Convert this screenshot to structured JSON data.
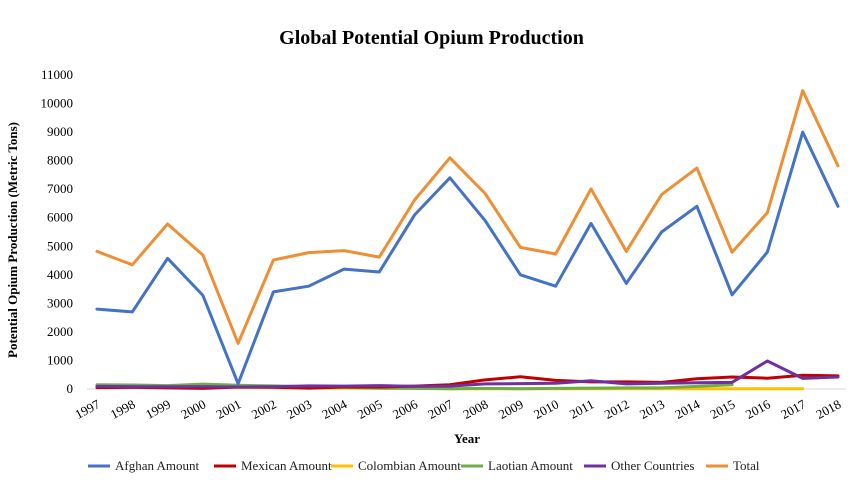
{
  "chart_data": {
    "type": "line",
    "title": "Global Potential Opium Production",
    "xlabel": "Year",
    "ylabel": "Potential Opium Production (Metric Tons)",
    "x": [
      "1997",
      "1998",
      "1999",
      "2000",
      "2001",
      "2002",
      "2003",
      "2004",
      "2005",
      "2006",
      "2007",
      "2008",
      "2009",
      "2010",
      "2011",
      "2012",
      "2013",
      "2014",
      "2015",
      "2016",
      "2017",
      "2018"
    ],
    "ylim": [
      0,
      11000
    ],
    "yticks": [
      0,
      1000,
      2000,
      3000,
      4000,
      5000,
      6000,
      7000,
      8000,
      9000,
      10000,
      11000
    ],
    "grid": false,
    "legend_position": "bottom",
    "series": [
      {
        "name": "Afghan Amount",
        "color": "#4472c4",
        "values": [
          2800,
          2700,
          4580,
          3280,
          185,
          3400,
          3600,
          4200,
          4100,
          6100,
          7400,
          5900,
          4000,
          3600,
          5800,
          3700,
          5500,
          6400,
          3300,
          4800,
          9000,
          6400
        ]
      },
      {
        "name": "Mexican Amount",
        "color": "#c00000",
        "values": [
          50,
          60,
          40,
          20,
          70,
          60,
          30,
          70,
          70,
          100,
          150,
          320,
          430,
          300,
          250,
          250,
          230,
          360,
          420,
          380,
          480,
          460
        ]
      },
      {
        "name": "Colombian Amount",
        "color": "#ffc000",
        "values": [
          60,
          60,
          70,
          80,
          50,
          50,
          30,
          30,
          20,
          20,
          10,
          10,
          10,
          10,
          10,
          10,
          10,
          10,
          10,
          10,
          10,
          null
        ]
      },
      {
        "name": "Laotian Amount",
        "color": "#70ad47",
        "values": [
          150,
          140,
          120,
          170,
          130,
          110,
          80,
          60,
          30,
          20,
          10,
          20,
          10,
          20,
          30,
          40,
          40,
          90,
          150,
          null,
          null,
          null
        ]
      },
      {
        "name": "Other Countries",
        "color": "#7030a0",
        "values": [
          90,
          80,
          80,
          80,
          70,
          80,
          110,
          100,
          120,
          90,
          100,
          180,
          190,
          200,
          290,
          180,
          200,
          220,
          230,
          980,
          370,
          420
        ]
      },
      {
        "name": "Total",
        "color": "#ed8f35",
        "values": [
          4820,
          4350,
          5780,
          4690,
          1600,
          4520,
          4780,
          4850,
          4620,
          6620,
          8100,
          6850,
          4960,
          4730,
          7010,
          4820,
          6810,
          7740,
          4790,
          6180,
          10450,
          7820
        ]
      }
    ]
  }
}
